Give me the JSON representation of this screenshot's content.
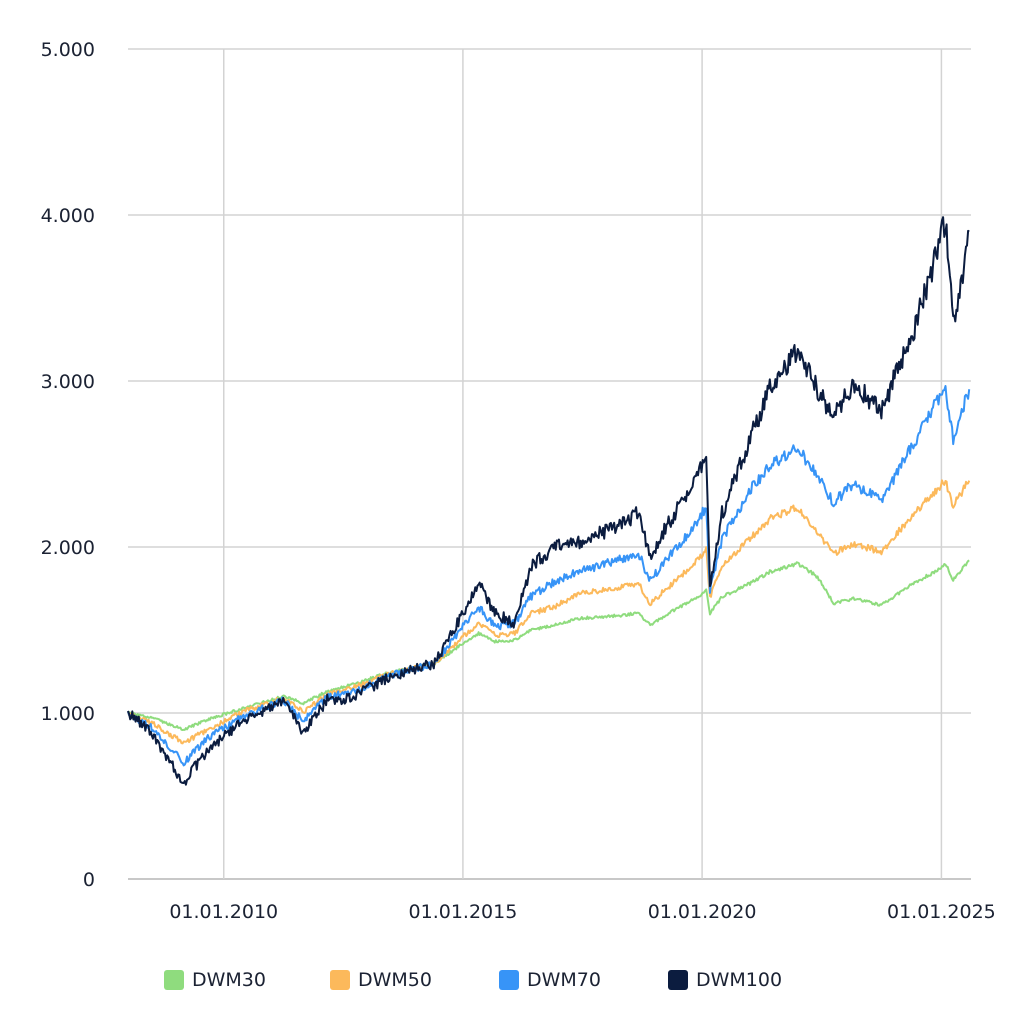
{
  "chart_data": {
    "type": "line",
    "title": "",
    "xlabel": "",
    "ylabel": "",
    "ylim": [
      0,
      5000
    ],
    "y_ticks": [
      0,
      1000,
      2000,
      3000,
      4000,
      5000
    ],
    "y_tick_labels": [
      "0",
      "1.000",
      "2.000",
      "3.000",
      "4.000",
      "5.000"
    ],
    "x_range": [
      "2008-01-01",
      "2025-08-15"
    ],
    "x_ticks": [
      "2010-01-01",
      "2015-01-01",
      "2020-01-01",
      "2025-01-01"
    ],
    "x_tick_labels": [
      "01.01.2010",
      "01.01.2015",
      "01.01.2020",
      "01.01.2025"
    ],
    "grid": true,
    "legend_position": "bottom",
    "x": [
      "2008-01",
      "2008-07",
      "2009-03",
      "2009-09",
      "2010-06",
      "2011-04",
      "2011-09",
      "2012-03",
      "2012-09",
      "2013-06",
      "2014-06",
      "2015-01",
      "2015-05",
      "2015-09",
      "2016-02",
      "2016-06",
      "2016-12",
      "2017-06",
      "2018-01",
      "2018-09",
      "2018-12",
      "2019-06",
      "2019-12",
      "2020-02",
      "2020-03",
      "2020-06",
      "2021-01",
      "2021-06",
      "2022-01",
      "2022-06",
      "2022-10",
      "2023-03",
      "2023-10",
      "2024-06",
      "2024-12",
      "2025-02",
      "2025-04",
      "2025-08"
    ],
    "series": [
      {
        "name": "DWM30",
        "color": "#8fdc7e",
        "values": [
          1000,
          970,
          900,
          960,
          1030,
          1100,
          1060,
          1130,
          1170,
          1240,
          1300,
          1420,
          1480,
          1430,
          1440,
          1500,
          1530,
          1570,
          1580,
          1600,
          1530,
          1620,
          1700,
          1740,
          1600,
          1700,
          1780,
          1850,
          1900,
          1820,
          1660,
          1690,
          1650,
          1780,
          1860,
          1900,
          1800,
          1920
        ]
      },
      {
        "name": "DWM50",
        "color": "#fcb95b",
        "values": [
          1000,
          940,
          820,
          900,
          1010,
          1090,
          1010,
          1110,
          1150,
          1230,
          1300,
          1460,
          1540,
          1470,
          1480,
          1600,
          1640,
          1720,
          1740,
          1780,
          1660,
          1790,
          1920,
          1980,
          1700,
          1880,
          2050,
          2170,
          2240,
          2090,
          1960,
          2020,
          1970,
          2200,
          2350,
          2400,
          2250,
          2400
        ]
      },
      {
        "name": "DWM70",
        "color": "#3794f7",
        "values": [
          1000,
          910,
          700,
          850,
          980,
          1080,
          950,
          1100,
          1120,
          1220,
          1300,
          1520,
          1640,
          1520,
          1540,
          1700,
          1790,
          1850,
          1900,
          1960,
          1800,
          1980,
          2150,
          2250,
          1740,
          2050,
          2340,
          2490,
          2600,
          2420,
          2270,
          2380,
          2280,
          2620,
          2880,
          2950,
          2650,
          2950
        ]
      },
      {
        "name": "DWM100",
        "color": "#0b1c3f",
        "values": [
          1000,
          880,
          580,
          780,
          950,
          1070,
          880,
          1080,
          1090,
          1210,
          1300,
          1600,
          1800,
          1600,
          1540,
          1880,
          2000,
          2030,
          2100,
          2200,
          1950,
          2200,
          2450,
          2550,
          1750,
          2200,
          2650,
          2950,
          3180,
          2950,
          2780,
          2980,
          2820,
          3300,
          3780,
          3980,
          3320,
          3900
        ]
      }
    ]
  }
}
